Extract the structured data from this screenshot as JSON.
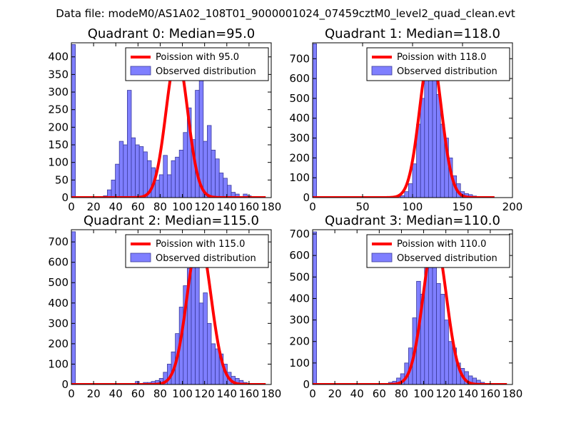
{
  "suptitle": "Data file: modeM0/AS1A02_108T01_9000001024_07459cztM0_level2_quad_clean.evt",
  "colors": {
    "bar_fill": "#7f7fff",
    "bar_edge": "#3a3a9a",
    "poisson": "#ff0000",
    "axes": "#000000"
  },
  "legend": {
    "observed_label": "Observed distribution"
  },
  "chart_data": [
    {
      "type": "bar",
      "title": "Quadrant 0: Median=95.0",
      "xlim": [
        0,
        180
      ],
      "ylim": [
        0,
        440
      ],
      "xticks": [
        0,
        20,
        40,
        60,
        80,
        100,
        120,
        140,
        160,
        180
      ],
      "yticks": [
        0,
        50,
        100,
        150,
        200,
        250,
        300,
        350,
        400
      ],
      "bin_width": 3.6,
      "bin_starts": [
        0,
        28.8,
        32.4,
        36,
        39.6,
        43.2,
        46.8,
        50.4,
        54,
        57.6,
        61.2,
        64.8,
        68.4,
        72,
        75.6,
        79.2,
        82.8,
        86.4,
        90,
        93.6,
        97.2,
        100.8,
        104.4,
        108,
        111.6,
        115.2,
        118.8,
        122.4,
        126,
        129.6,
        133.2,
        136.8,
        140.4,
        144,
        147.6,
        151.2,
        154.8,
        158.4
      ],
      "counts": [
        435,
        5,
        22,
        50,
        95,
        160,
        150,
        305,
        170,
        150,
        145,
        130,
        105,
        85,
        50,
        65,
        120,
        65,
        105,
        115,
        135,
        185,
        255,
        165,
        305,
        415,
        160,
        205,
        135,
        110,
        70,
        55,
        35,
        15,
        10,
        2,
        10,
        5
      ],
      "poisson_lambda": 95.0,
      "poisson_label": "Poission with 95.0",
      "poisson_peak": 405,
      "poisson_range": [
        0,
        175
      ]
    },
    {
      "type": "bar",
      "title": "Quadrant 1: Median=118.0",
      "xlim": [
        0,
        200
      ],
      "ylim": [
        0,
        780
      ],
      "xticks": [
        0,
        50,
        100,
        150,
        200
      ],
      "yticks": [
        0,
        100,
        200,
        300,
        400,
        500,
        600,
        700
      ],
      "bin_width": 4,
      "bin_starts": [
        0,
        80,
        84,
        88,
        92,
        96,
        100,
        104,
        108,
        112,
        116,
        120,
        124,
        128,
        132,
        136,
        140,
        144,
        148,
        152,
        156,
        160,
        164
      ],
      "counts": [
        775,
        3,
        5,
        10,
        30,
        70,
        170,
        370,
        500,
        680,
        715,
        660,
        520,
        370,
        300,
        200,
        110,
        70,
        30,
        20,
        15,
        8,
        3
      ],
      "poisson_lambda": 118.0,
      "poisson_label": "Poission with 118.0",
      "poisson_peak": 740,
      "poisson_range": [
        0,
        182
      ]
    },
    {
      "type": "bar",
      "title": "Quadrant 2: Median=115.0",
      "xlim": [
        0,
        180
      ],
      "ylim": [
        0,
        760
      ],
      "xticks": [
        0,
        20,
        40,
        60,
        80,
        100,
        120,
        140,
        160,
        180
      ],
      "yticks": [
        0,
        100,
        200,
        300,
        400,
        500,
        600,
        700
      ],
      "bin_width": 3.6,
      "bin_starts": [
        0,
        54,
        57.6,
        61.2,
        64.8,
        68.4,
        72,
        75.6,
        79.2,
        82.8,
        86.4,
        90,
        93.6,
        97.2,
        100.8,
        104.4,
        108,
        111.6,
        115.2,
        118.8,
        122.4,
        126,
        129.6,
        133.2,
        136.8,
        140.4,
        144,
        147.6,
        151.2,
        154.8
      ],
      "counts": [
        750,
        5,
        15,
        5,
        10,
        10,
        15,
        20,
        30,
        60,
        100,
        160,
        250,
        380,
        485,
        570,
        680,
        625,
        400,
        450,
        300,
        200,
        175,
        150,
        100,
        60,
        40,
        30,
        20,
        10
      ],
      "poisson_lambda": 115.0,
      "poisson_label": "Poission with 115.0",
      "poisson_peak": 720,
      "poisson_range": [
        0,
        175
      ]
    },
    {
      "type": "bar",
      "title": "Quadrant 3: Median=110.0",
      "xlim": [
        0,
        180
      ],
      "ylim": [
        0,
        720
      ],
      "xticks": [
        0,
        20,
        40,
        60,
        80,
        100,
        120,
        140,
        160,
        180
      ],
      "yticks": [
        0,
        100,
        200,
        300,
        400,
        500,
        600,
        700
      ],
      "bin_width": 3.6,
      "bin_starts": [
        0,
        64.8,
        68.4,
        72,
        75.6,
        79.2,
        82.8,
        86.4,
        90,
        93.6,
        97.2,
        100.8,
        104.4,
        108,
        111.6,
        115.2,
        118.8,
        122.4,
        126,
        129.6,
        133.2,
        136.8,
        140.4,
        144,
        147.6,
        151.2,
        154.8
      ],
      "counts": [
        710,
        5,
        10,
        15,
        30,
        50,
        100,
        170,
        310,
        480,
        420,
        560,
        670,
        640,
        470,
        420,
        300,
        200,
        170,
        100,
        75,
        60,
        40,
        30,
        20,
        10,
        5
      ],
      "poisson_lambda": 110.0,
      "poisson_label": "Poission with 110.0",
      "poisson_peak": 680,
      "poisson_range": [
        0,
        175
      ]
    }
  ]
}
